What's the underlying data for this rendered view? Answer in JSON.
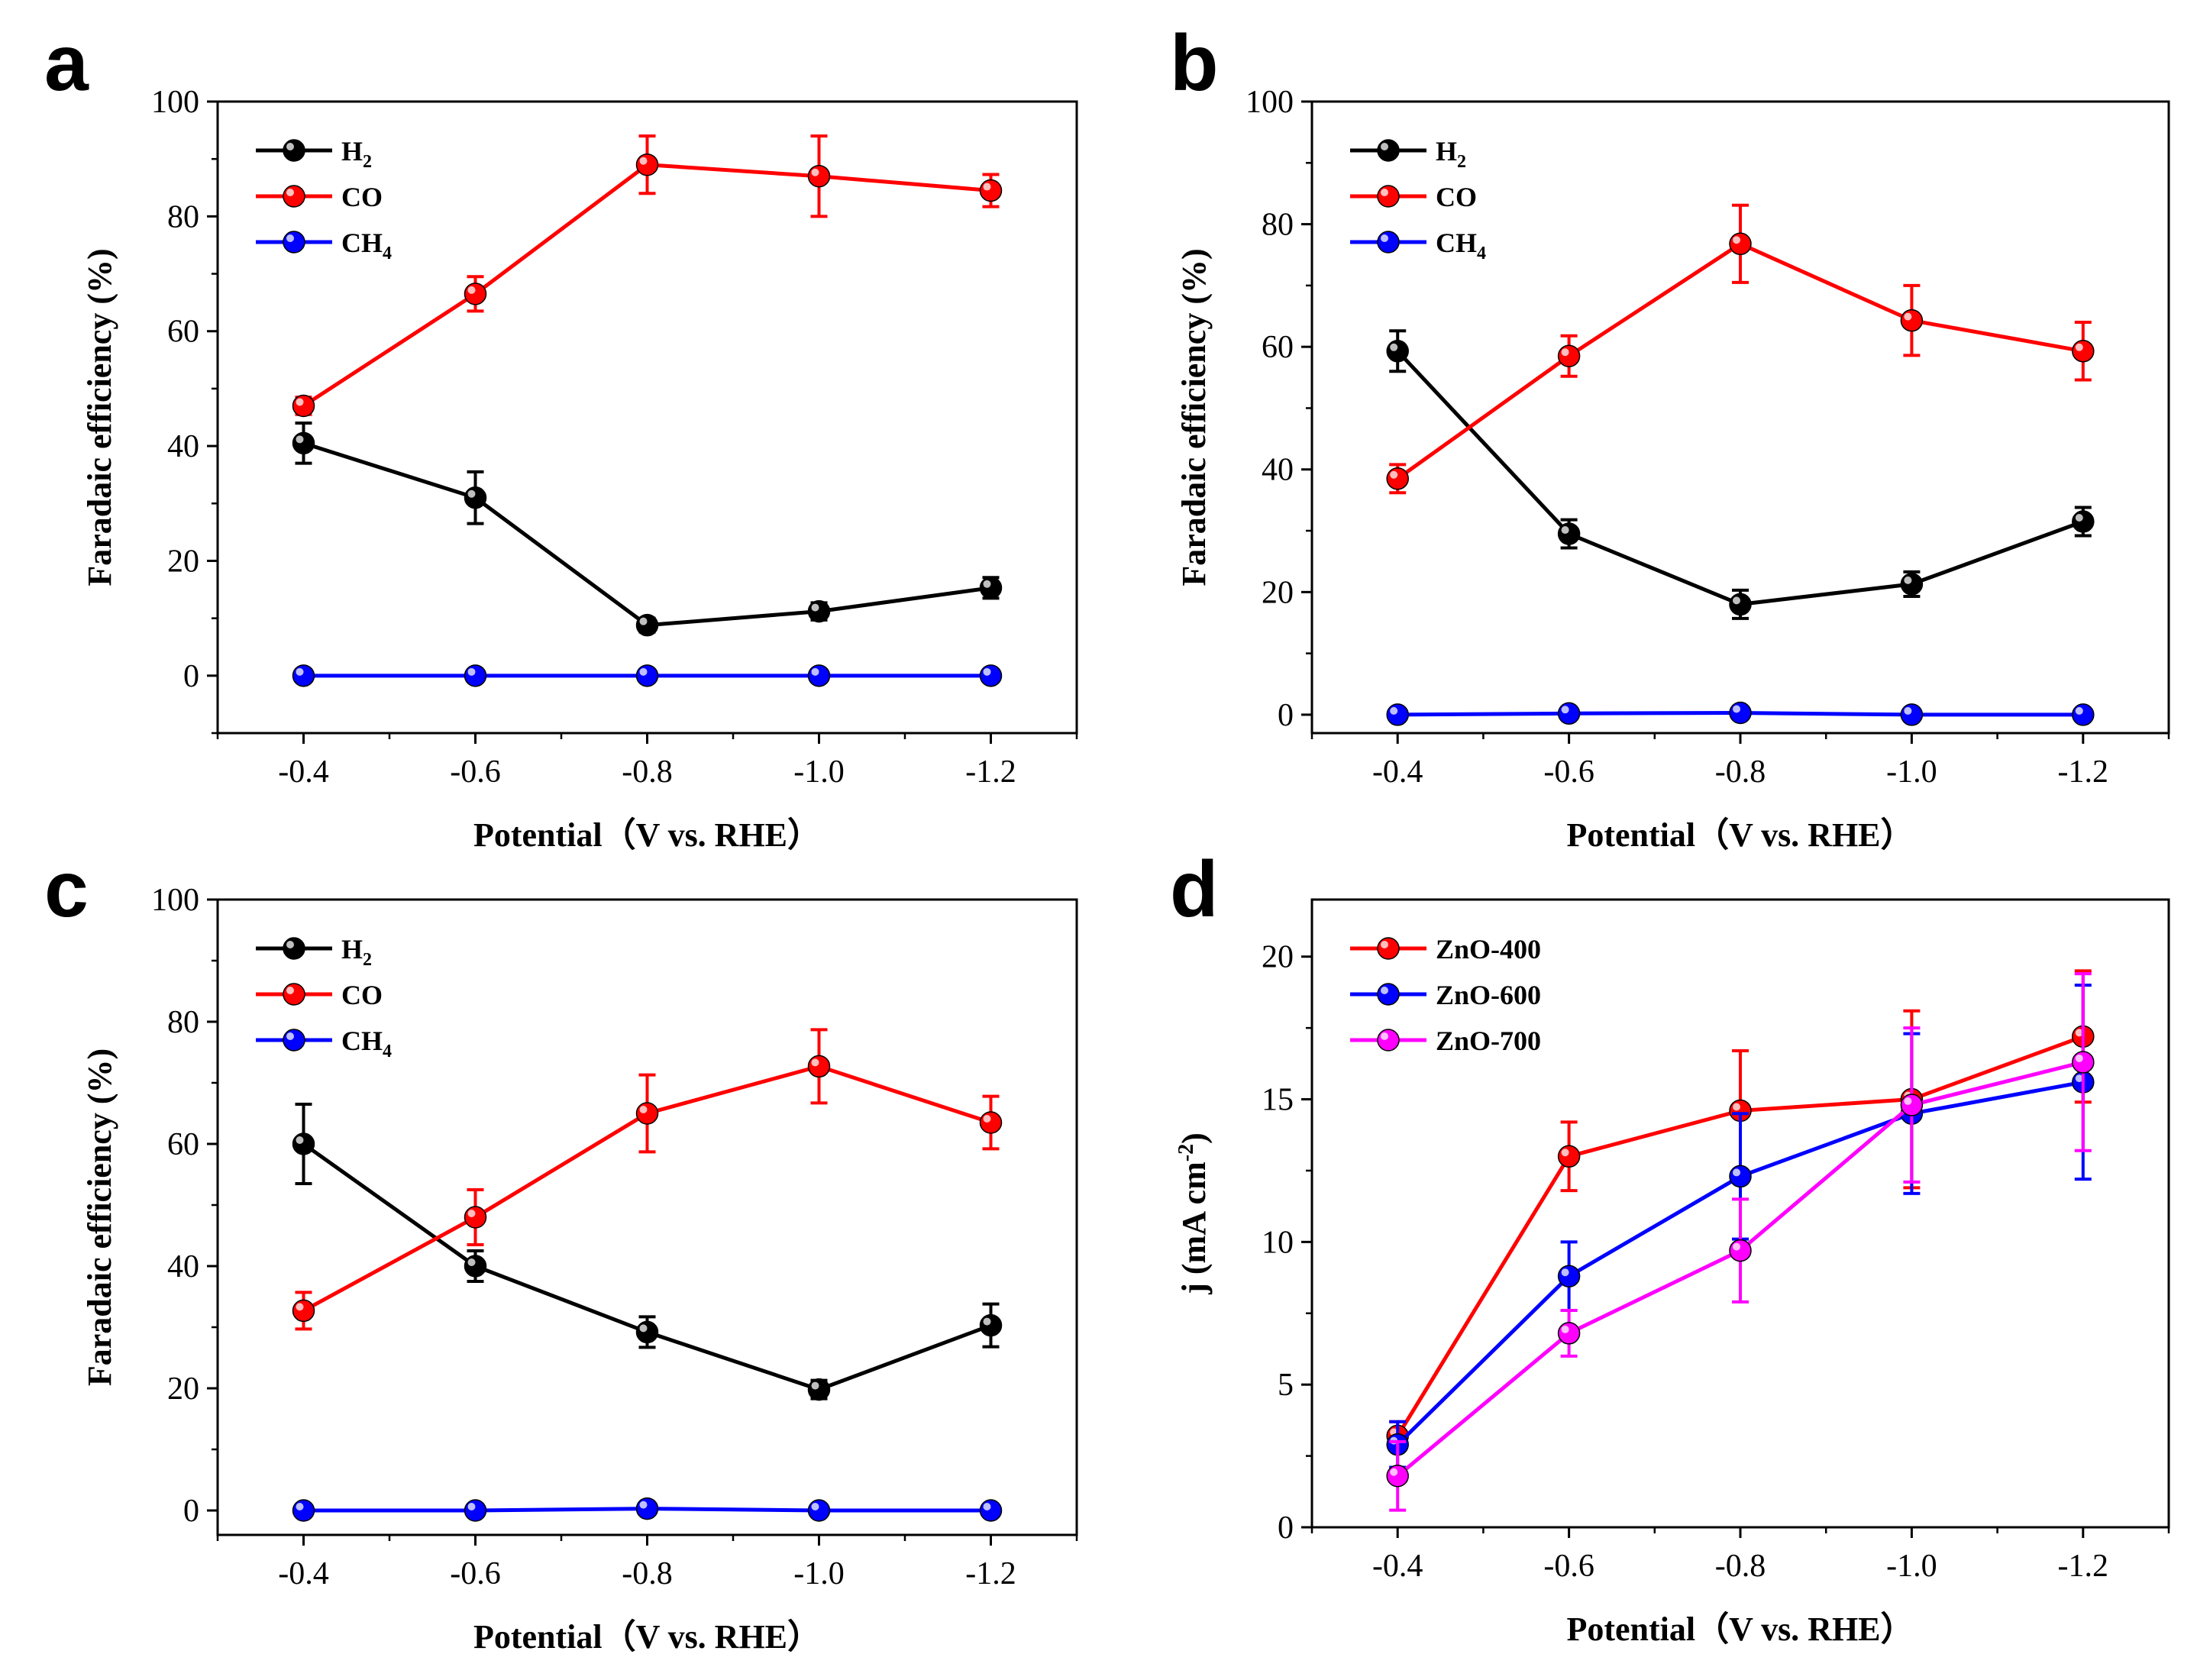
{
  "figure": {
    "accent_colors": {
      "h2": "#000000",
      "co": "#ff0000",
      "ch4": "#0000ff",
      "zno400": "#ff0000",
      "zno600": "#0000ff",
      "zno700": "#ff00ff"
    }
  },
  "chart_data": [
    {
      "panel": "a",
      "type": "line",
      "xlabel": "Potential（V vs. RHE）",
      "ylabel": "Faradaic efficiency (%)",
      "categories": [
        "-0.4",
        "-0.6",
        "-0.8",
        "-1.0",
        "-1.2"
      ],
      "xlim": [
        -0.3,
        -1.3
      ],
      "ylim": [
        -10,
        100
      ],
      "yticks": [
        "0",
        "20",
        "40",
        "60",
        "80",
        "100"
      ],
      "ytick_values": [
        0,
        20,
        40,
        60,
        80,
        100
      ],
      "legend_position": "top-left",
      "series": [
        {
          "name": "H",
          "sub": "2",
          "key": "h2",
          "color": "#000000",
          "values": [
            40.5,
            31.0,
            8.8,
            11.2,
            15.3
          ],
          "errors": [
            3.5,
            4.5,
            1.2,
            1.5,
            1.8
          ]
        },
        {
          "name": "CO",
          "sub": "",
          "key": "co",
          "color": "#ff0000",
          "values": [
            47.0,
            66.5,
            89.0,
            87.0,
            84.5
          ],
          "errors": [
            1.5,
            3.0,
            5.0,
            7.0,
            2.8
          ]
        },
        {
          "name": "CH",
          "sub": "4",
          "key": "ch4",
          "color": "#0000ff",
          "values": [
            0,
            0,
            0,
            0,
            0
          ],
          "errors": [
            0,
            0,
            0,
            0,
            0
          ]
        }
      ]
    },
    {
      "panel": "b",
      "type": "line",
      "xlabel": "Potential（V vs. RHE）",
      "ylabel": "Faradaic efficiency (%)",
      "categories": [
        "-0.4",
        "-0.6",
        "-0.8",
        "-1.0",
        "-1.2"
      ],
      "xlim": [
        -0.3,
        -1.3
      ],
      "ylim": [
        -3,
        100
      ],
      "yticks": [
        "0",
        "20",
        "40",
        "60",
        "80",
        "100"
      ],
      "ytick_values": [
        0,
        20,
        40,
        60,
        80,
        100
      ],
      "legend_position": "top-left",
      "series": [
        {
          "name": "H",
          "sub": "2",
          "key": "h2",
          "color": "#000000",
          "values": [
            59.3,
            29.5,
            18.0,
            21.3,
            31.5
          ],
          "errors": [
            3.3,
            2.3,
            2.3,
            2.0,
            2.3
          ]
        },
        {
          "name": "CO",
          "sub": "",
          "key": "co",
          "color": "#ff0000",
          "values": [
            38.5,
            58.5,
            76.8,
            64.3,
            59.3
          ],
          "errors": [
            2.3,
            3.3,
            6.3,
            5.7,
            4.7
          ]
        },
        {
          "name": "CH",
          "sub": "4",
          "key": "ch4",
          "color": "#0000ff",
          "values": [
            0,
            0.2,
            0.3,
            0,
            0
          ],
          "errors": [
            0,
            0,
            0,
            0,
            0
          ]
        }
      ]
    },
    {
      "panel": "c",
      "type": "line",
      "xlabel": "Potential（V vs. RHE）",
      "ylabel": "Faradaic efficiency (%)",
      "categories": [
        "-0.4",
        "-0.6",
        "-0.8",
        "-1.0",
        "-1.2"
      ],
      "xlim": [
        -0.3,
        -1.3
      ],
      "ylim": [
        -4,
        100
      ],
      "yticks": [
        "0",
        "20",
        "40",
        "60",
        "80",
        "100"
      ],
      "ytick_values": [
        0,
        20,
        40,
        60,
        80,
        100
      ],
      "legend_position": "top-left",
      "series": [
        {
          "name": "H",
          "sub": "2",
          "key": "h2",
          "color": "#000000",
          "values": [
            60.0,
            40.0,
            29.2,
            19.8,
            30.3
          ],
          "errors": [
            6.5,
            2.5,
            2.5,
            1.5,
            3.5
          ]
        },
        {
          "name": "CO",
          "sub": "",
          "key": "co",
          "color": "#ff0000",
          "values": [
            32.7,
            48.0,
            65.0,
            72.7,
            63.5
          ],
          "errors": [
            3.0,
            4.5,
            6.3,
            6.0,
            4.3
          ]
        },
        {
          "name": "CH",
          "sub": "4",
          "key": "ch4",
          "color": "#0000ff",
          "values": [
            0,
            0,
            0.3,
            0,
            0
          ],
          "errors": [
            0,
            0,
            0,
            0,
            0
          ]
        }
      ]
    },
    {
      "panel": "d",
      "type": "line",
      "xlabel": "Potential（V vs. RHE）",
      "ylabel": "j (mA cm",
      "ylabel_sup": "-2",
      "ylabel_end": ")",
      "categories": [
        "-0.4",
        "-0.6",
        "-0.8",
        "-1.0",
        "-1.2"
      ],
      "xlim": [
        -0.3,
        -1.3
      ],
      "ylim": [
        0,
        22
      ],
      "yticks": [
        "0",
        "5",
        "10",
        "15",
        "20"
      ],
      "ytick_values": [
        0,
        5,
        10,
        15,
        20
      ],
      "legend_position": "top-left",
      "series": [
        {
          "name": "ZnO-400",
          "sub": "",
          "key": "zno400",
          "color": "#ff0000",
          "values": [
            3.2,
            13.0,
            14.6,
            15.0,
            17.2
          ],
          "errors": [
            0.5,
            1.2,
            2.1,
            3.1,
            2.3
          ]
        },
        {
          "name": "ZnO-600",
          "sub": "",
          "key": "zno600",
          "color": "#0000ff",
          "values": [
            2.9,
            8.8,
            12.3,
            14.5,
            15.6
          ],
          "errors": [
            0.8,
            1.2,
            2.2,
            2.8,
            3.4
          ]
        },
        {
          "name": "ZnO-700",
          "sub": "",
          "key": "zno700",
          "color": "#ff00ff",
          "values": [
            1.8,
            6.8,
            9.7,
            14.8,
            16.3
          ],
          "errors": [
            1.2,
            0.8,
            1.8,
            2.7,
            3.1
          ]
        }
      ]
    }
  ]
}
